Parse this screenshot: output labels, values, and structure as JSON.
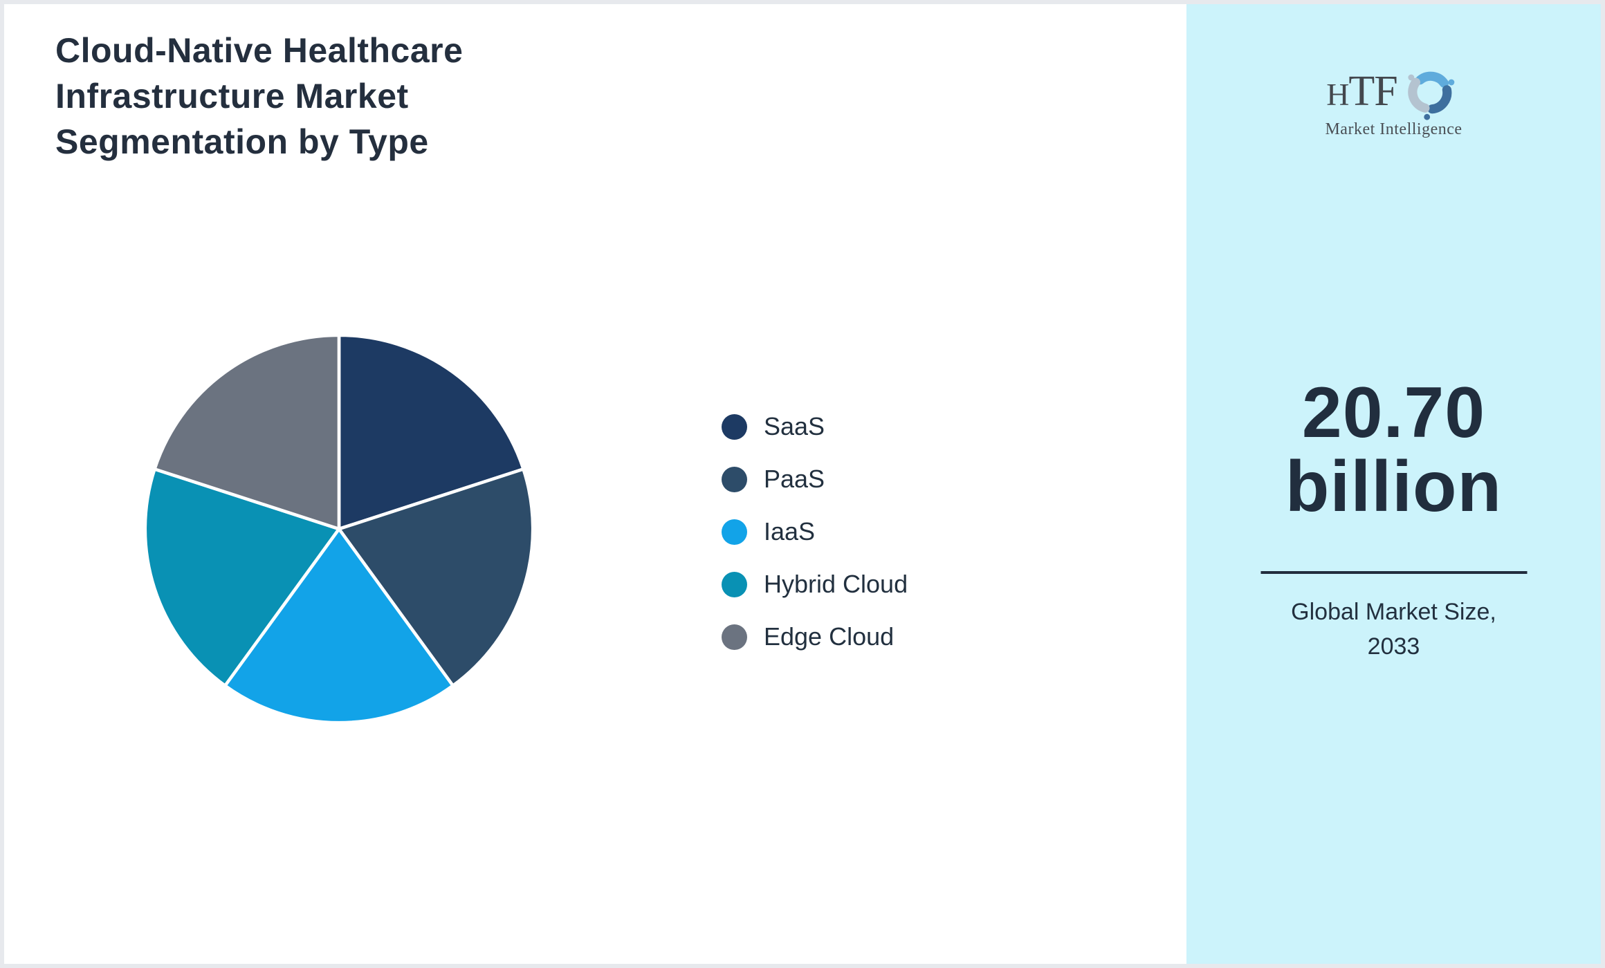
{
  "page": {
    "title": "Cloud-Native Healthcare\nInfrastructure Market\nSegmentation by Type"
  },
  "chart_data": {
    "type": "pie",
    "title": "Cloud-Native Healthcare Infrastructure Market Segmentation by Type",
    "segments": [
      {
        "label": "SaaS",
        "value": 20,
        "color": "#1d3a63"
      },
      {
        "label": "PaaS",
        "value": 20,
        "color": "#2d4c69"
      },
      {
        "label": "IaaS",
        "value": 20,
        "color": "#12a3e8"
      },
      {
        "label": "Hybrid Cloud",
        "value": 20,
        "color": "#0991b4"
      },
      {
        "label": "Edge Cloud",
        "value": 20,
        "color": "#6b7380"
      }
    ],
    "start_angle_deg": 0,
    "direction": "clockwise",
    "slice_separator_color": "#ffffff",
    "legend_position": "right"
  },
  "side_panel": {
    "background_color": "#ccf3fb",
    "market_size_value": "20.70",
    "market_size_unit": "billion",
    "caption": "Global Market Size,\n2033"
  },
  "logo": {
    "brand": "HTF",
    "tagline": "Market Intelligence",
    "dolphin_colors": [
      "#5fabdc",
      "#3e6f9e",
      "#b4c3d0"
    ]
  }
}
